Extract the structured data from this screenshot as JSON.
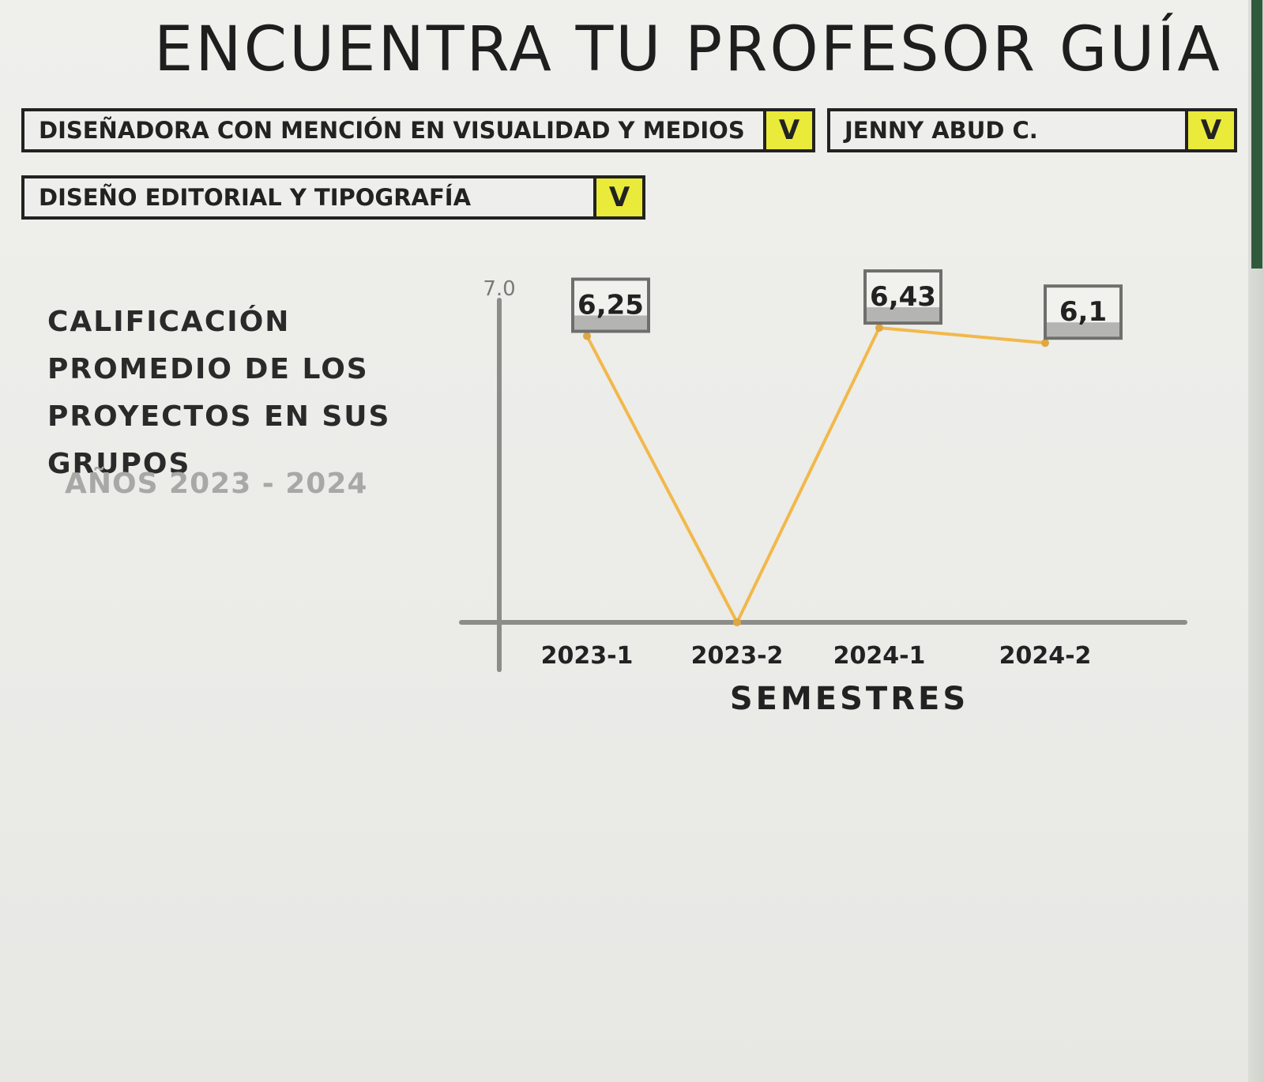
{
  "header": {
    "title": "Encuentra tu profesor guía"
  },
  "filters": {
    "career": {
      "value": "Diseñadora con mención en Visualidad y medios",
      "toggle": "V"
    },
    "professor": {
      "value": "Jenny Abud C.",
      "toggle": "V"
    },
    "course": {
      "value": "Diseño editorial y tipografía",
      "toggle": "V"
    }
  },
  "metric": {
    "title": "Calificación promedio de los proyectos en sus grupos",
    "years": "Años 2023 - 2024"
  },
  "chart_data": {
    "type": "line",
    "categories": [
      "2023-1",
      "2023-2",
      "2024-1",
      "2024-2"
    ],
    "values": [
      6.25,
      0,
      6.43,
      6.1
    ],
    "labels": [
      "6,25",
      "",
      "6,43",
      "6,1"
    ],
    "xlabel": "Semestres",
    "ylabel": "",
    "ylim": [
      0,
      7.0
    ],
    "ytick_label": "7.0",
    "grid": false,
    "line_color": "#f2b84a",
    "axis_color": "#8c8c88"
  }
}
